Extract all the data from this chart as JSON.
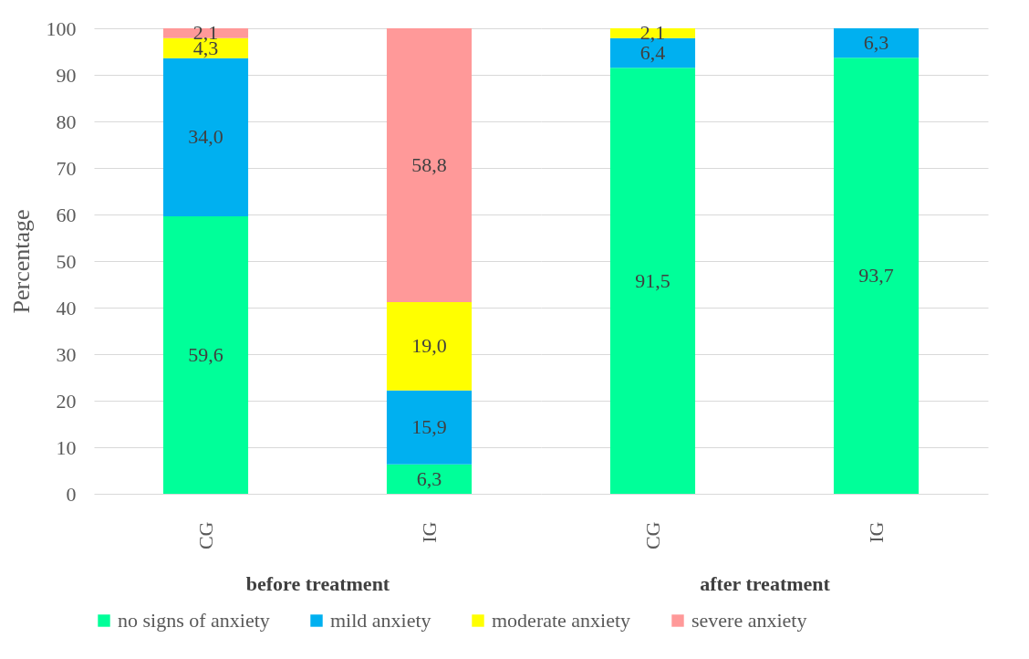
{
  "chart_data": {
    "type": "bar",
    "stacked": true,
    "ylabel": "Percentage",
    "categories": [
      "CG",
      "IG",
      "CG",
      "IG"
    ],
    "annotations": [
      "before treatment",
      "after treatment"
    ],
    "ylim": [
      0,
      100
    ],
    "yticks": [
      0,
      10,
      20,
      30,
      40,
      50,
      60,
      70,
      80,
      90,
      100
    ],
    "grid": "y",
    "legend": "bottom",
    "series": [
      {
        "name": "no signs of anxiety",
        "color": "#00ff99",
        "values": [
          59.6,
          6.3,
          91.5,
          93.7
        ],
        "value_labels": [
          "59,6",
          "6,3",
          "91,5",
          "93,7"
        ]
      },
      {
        "name": "mild anxiety",
        "color": "#00b0f0",
        "values": [
          34.0,
          15.9,
          6.4,
          6.3
        ],
        "value_labels": [
          "34,0",
          "15,9",
          "6,4",
          "6,3"
        ]
      },
      {
        "name": "moderate anxiety",
        "color": "#ffff00",
        "values": [
          4.3,
          19.0,
          2.1,
          null
        ],
        "value_labels": [
          "4,3",
          "19,0",
          "2,1",
          null
        ]
      },
      {
        "name": "severe anxiety",
        "color": "#ff9999",
        "values": [
          2.1,
          58.8,
          null,
          null
        ],
        "value_labels": [
          "2,1",
          "58,8",
          null,
          null
        ]
      }
    ]
  }
}
